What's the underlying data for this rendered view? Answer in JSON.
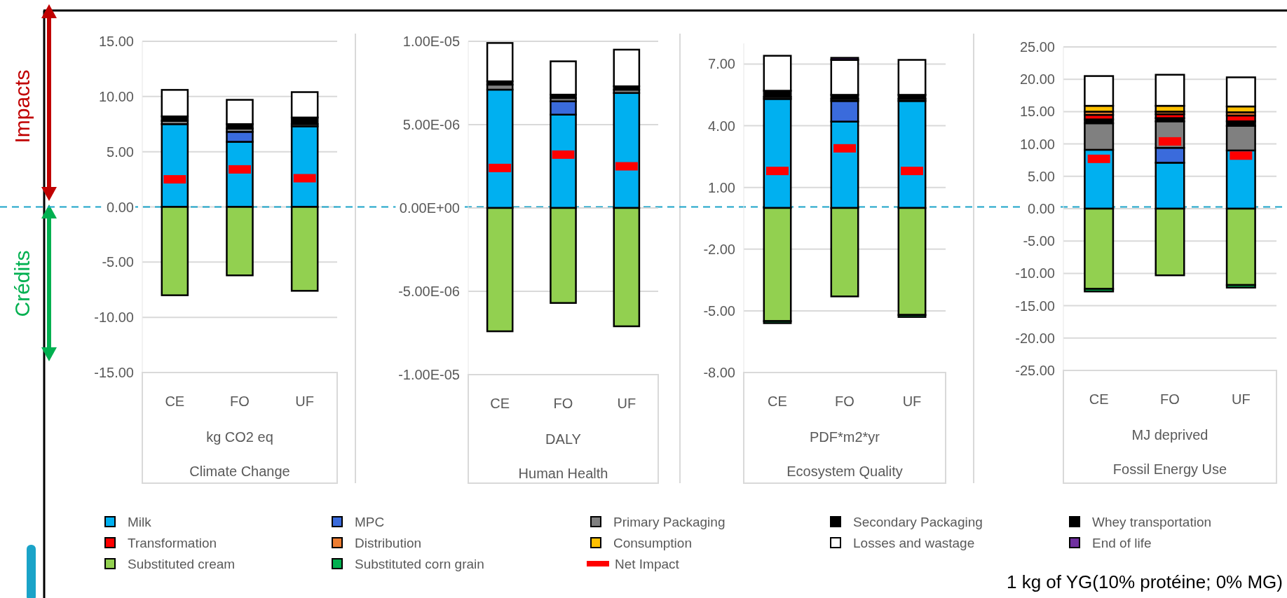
{
  "chart_data": [
    {
      "type": "bar",
      "stacked": true,
      "title": "Climate Change",
      "xlabel": "kg CO2 eq",
      "categories": [
        "CE",
        "FO",
        "UF"
      ],
      "ylim": [
        -15,
        15
      ],
      "yticks": [
        {
          "value": 15,
          "label": "15.00"
        },
        {
          "value": 10,
          "label": "10.00"
        },
        {
          "value": 5,
          "label": "5.00"
        },
        {
          "value": 0,
          "label": "0.00"
        },
        {
          "value": -5,
          "label": "-5.00"
        },
        {
          "value": -10,
          "label": "-10.00"
        },
        {
          "value": -15,
          "label": "-15.00"
        }
      ],
      "grid": true,
      "legend": "bottom",
      "ref_lines": [
        {
          "axis": "y",
          "value": 0,
          "color": "#1aa3c8",
          "line_style": "dashed"
        }
      ],
      "annotations": [
        "Impacts",
        "Crédits",
        "1 kg of YG(10% protéine; 0% MG)"
      ],
      "series": [
        {
          "name": "Milk",
          "color": "#00b0f0",
          "values": [
            7.5,
            5.9,
            7.3
          ]
        },
        {
          "name": "MPC",
          "color": "#3a6bdc",
          "values": [
            0,
            0.9,
            0
          ]
        },
        {
          "name": "Primary Packaging",
          "color": "#808080",
          "values": [
            0.3,
            0.3,
            0.2
          ]
        },
        {
          "name": "Secondary Packaging",
          "color": "#000000",
          "values": [
            0.4,
            0.4,
            0.6
          ]
        },
        {
          "name": "Whey transportation",
          "color": "#000000",
          "values": [
            0,
            0,
            0
          ]
        },
        {
          "name": "Transformation",
          "color": "#ff0000",
          "values": [
            0,
            0,
            0
          ]
        },
        {
          "name": "Distribution",
          "color": "#ed7d31",
          "values": [
            0,
            0,
            0
          ]
        },
        {
          "name": "Consumption",
          "color": "#ffc000",
          "values": [
            0,
            0,
            0
          ]
        },
        {
          "name": "Losses and wastage",
          "color": "#ffffff",
          "values": [
            2.4,
            2.2,
            2.3
          ]
        },
        {
          "name": "End of life",
          "color": "#7030a0",
          "values": [
            0,
            0,
            0
          ]
        },
        {
          "name": "Substituted cream",
          "color": "#92d050",
          "values": [
            -8.0,
            -6.2,
            -7.6
          ]
        },
        {
          "name": "Substituted corn grain",
          "color": "#00b050",
          "values": [
            0,
            0,
            0
          ]
        },
        {
          "name": "Net Impact",
          "type": "scatter",
          "color": "#ff0000",
          "values": [
            2.5,
            3.4,
            2.6
          ]
        }
      ]
    },
    {
      "type": "bar",
      "stacked": true,
      "title": "Human Health",
      "xlabel": "DALY",
      "categories": [
        "CE",
        "FO",
        "UF"
      ],
      "ylim": [
        -1e-05,
        1e-05
      ],
      "yticks": [
        {
          "value": 1e-05,
          "label": "1.00E-05"
        },
        {
          "value": 5e-06,
          "label": "5.00E-06"
        },
        {
          "value": 0,
          "label": "0.00E+00"
        },
        {
          "value": -5e-06,
          "label": "-5.00E-06"
        },
        {
          "value": -1e-05,
          "label": "-1.00E-05"
        }
      ],
      "grid": true,
      "series": [
        {
          "color": "#00b0f0",
          "values": [
            7.1e-06,
            5.6e-06,
            6.9e-06
          ]
        },
        {
          "color": "#3a6bdc",
          "values": [
            0,
            8e-07,
            0
          ]
        },
        {
          "color": "#808080",
          "values": [
            3e-07,
            2e-07,
            2e-07
          ]
        },
        {
          "color": "#000000",
          "values": [
            2e-07,
            2e-07,
            2e-07
          ]
        },
        {
          "color": "#ffffff",
          "values": [
            2.3e-06,
            2e-06,
            2.2e-06
          ]
        },
        {
          "color": "#92d050",
          "values": [
            -7.4e-06,
            -5.7e-06,
            -7.1e-06
          ]
        },
        {
          "type": "scatter",
          "color": "#ff0000",
          "values": [
            2.4e-06,
            3.2e-06,
            2.5e-06
          ]
        }
      ]
    },
    {
      "type": "bar",
      "stacked": true,
      "title": "Ecosystem Quality",
      "xlabel": "PDF*m2*yr",
      "categories": [
        "CE",
        "FO",
        "UF"
      ],
      "ylim": [
        -8,
        8
      ],
      "yticks": [
        {
          "value": 7,
          "label": "7.00"
        },
        {
          "value": 4,
          "label": "4.00"
        },
        {
          "value": 1,
          "label": "1.00"
        },
        {
          "value": -2,
          "label": "-2.00"
        },
        {
          "value": -5,
          "label": "-5.00"
        },
        {
          "value": -8,
          "label": "-8.00"
        }
      ],
      "grid": true,
      "series": [
        {
          "color": "#00b0f0",
          "values": [
            5.3,
            4.2,
            5.2
          ]
        },
        {
          "color": "#3a6bdc",
          "values": [
            0,
            1.0,
            0
          ]
        },
        {
          "color": "#808080",
          "values": [
            0.1,
            0.1,
            0.1
          ]
        },
        {
          "color": "#000000",
          "values": [
            0.3,
            0.2,
            0.2
          ]
        },
        {
          "color": "#ffffff",
          "values": [
            1.7,
            1.7,
            1.7
          ]
        },
        {
          "color": "#7030a0",
          "values": [
            0,
            0.1,
            0
          ]
        },
        {
          "color": "#92d050",
          "values": [
            -5.5,
            -4.3,
            -5.2
          ]
        },
        {
          "color": "#00b050",
          "values": [
            -0.1,
            0,
            -0.1
          ]
        },
        {
          "type": "scatter",
          "color": "#ff0000",
          "values": [
            1.8,
            2.9,
            1.8
          ]
        }
      ]
    },
    {
      "type": "bar",
      "stacked": true,
      "title": "Fossil Energy Use",
      "xlabel": "MJ deprived",
      "categories": [
        "CE",
        "FO",
        "UF"
      ],
      "ylim": [
        -25,
        25
      ],
      "yticks": [
        {
          "value": 25,
          "label": "25.00"
        },
        {
          "value": 20,
          "label": "20.00"
        },
        {
          "value": 15,
          "label": "15.00"
        },
        {
          "value": 10,
          "label": "10.00"
        },
        {
          "value": 5,
          "label": "5.00"
        },
        {
          "value": 0,
          "label": "0.00"
        },
        {
          "value": -5,
          "label": "-5.00"
        },
        {
          "value": -10,
          "label": "-10.00"
        },
        {
          "value": -15,
          "label": "-15.00"
        },
        {
          "value": -20,
          "label": "-20.00"
        },
        {
          "value": -25,
          "label": "-25.00"
        }
      ],
      "grid": true,
      "series": [
        {
          "color": "#00b0f0",
          "values": [
            9.1,
            7.1,
            9.0
          ]
        },
        {
          "color": "#3a6bdc",
          "values": [
            0,
            2.3,
            0
          ]
        },
        {
          "color": "#808080",
          "values": [
            4.1,
            4.1,
            3.8
          ]
        },
        {
          "color": "#000000",
          "values": [
            0.6,
            0.5,
            0.7
          ]
        },
        {
          "color": "#ff0000",
          "values": [
            0.7,
            0.6,
            0.9
          ]
        },
        {
          "color": "#ed7d31",
          "values": [
            0.5,
            0.4,
            0.5
          ]
        },
        {
          "color": "#ffc000",
          "values": [
            0.9,
            0.9,
            0.9
          ]
        },
        {
          "color": "#ffffff",
          "values": [
            4.6,
            4.8,
            4.5
          ]
        },
        {
          "color": "#92d050",
          "values": [
            -12.4,
            -10.3,
            -11.8
          ]
        },
        {
          "color": "#00b050",
          "values": [
            -0.4,
            0,
            -0.4
          ]
        },
        {
          "type": "scatter",
          "color": "#ff0000",
          "values": [
            7.7,
            10.4,
            8.2
          ]
        }
      ]
    }
  ]
}
